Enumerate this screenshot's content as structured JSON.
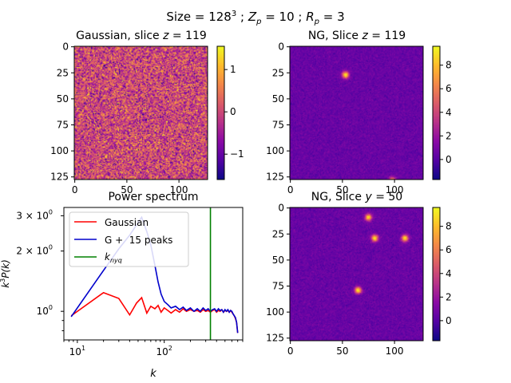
{
  "suptitle": "Size $=128^3$ ; $Z_p=10$ ; $R_p=3$",
  "suptitle_parts": {
    "a": "Size ",
    "b": "= 128",
    "c": "3",
    "d": " ; ",
    "e": "Z",
    "f": "p",
    "g": " = 10 ; ",
    "h": "R",
    "i": "p",
    "j": " = 3"
  },
  "colormap": "plasma",
  "chart_data": [
    {
      "type": "heatmap",
      "title_parts": {
        "a": "Gaussian, slice ",
        "b": "z",
        "c": " = 119"
      },
      "grid_size": 128,
      "xticks": [
        0,
        50,
        100
      ],
      "yticks": [
        0,
        25,
        50,
        75,
        100,
        125
      ],
      "colorbar": {
        "min": -1.6,
        "max": 1.55,
        "ticks": [
          -1,
          0,
          1
        ],
        "tick_labels": [
          "−1",
          "0",
          "1"
        ]
      },
      "field": "gaussian_random"
    },
    {
      "type": "heatmap",
      "title_parts": {
        "a": "NG, Slice ",
        "b": "z",
        "c": " = 119"
      },
      "grid_size": 128,
      "xticks": [
        0,
        50,
        100
      ],
      "yticks": [
        0,
        25,
        50,
        75,
        100,
        125
      ],
      "colorbar": {
        "min": -1.7,
        "max": 9.6,
        "ticks": [
          0,
          2,
          4,
          6,
          8
        ],
        "tick_labels": [
          "0",
          "2",
          "4",
          "6",
          "8"
        ]
      },
      "background": 0.5,
      "peaks": [
        {
          "x": 53,
          "y": 27,
          "value": 9.0
        },
        {
          "x": 98,
          "y": 128,
          "value": 6.0
        }
      ]
    },
    {
      "type": "line",
      "title": "Power spectrum",
      "xlabel": "k",
      "ylabel_parts": {
        "a": "k",
        "b": "3",
        "c": "P(k)"
      },
      "xscale": "log",
      "yscale": "log",
      "xlim": [
        7,
        800
      ],
      "ylim": [
        0.72,
        3.3
      ],
      "xticks": [
        {
          "v": 10,
          "base": "10",
          "exp": "1"
        },
        {
          "v": 100,
          "base": "10",
          "exp": "2"
        }
      ],
      "yticks": [
        {
          "v": 1,
          "base": "10",
          "exp": "0"
        },
        {
          "v": 2,
          "mant": "2 × 10",
          "exp": "0"
        },
        {
          "v": 3,
          "mant": "3 × 10",
          "exp": "0"
        }
      ],
      "legend_position": "upper-left",
      "legend": [
        "Gaussian",
        "G +  15 peaks",
        "k_nyq"
      ],
      "legend_knyq_parts": {
        "a": "k",
        "b": "nyq"
      },
      "series": [
        {
          "name": "Gaussian",
          "color": "#ff0000",
          "x": [
            8.5,
            20,
            30,
            40,
            48,
            55,
            63,
            70,
            78,
            85,
            92,
            100,
            110,
            120,
            135,
            150,
            165,
            180,
            200,
            220,
            240,
            260,
            280,
            300,
            320,
            340,
            360,
            380,
            400,
            420,
            440,
            460,
            480,
            500,
            520,
            540,
            560,
            580,
            600,
            620,
            640,
            660,
            680,
            700
          ],
          "y": [
            0.95,
            1.24,
            1.16,
            0.96,
            1.1,
            1.17,
            0.98,
            1.06,
            1.03,
            1.07,
            0.99,
            1.04,
            1.01,
            0.98,
            1.02,
            0.99,
            1.03,
            1.0,
            1.02,
            1.0,
            1.01,
            0.99,
            1.02,
            1.0,
            1.01,
            0.99,
            1.01,
            1.02,
            0.99,
            1.01,
            1.0,
            1.02,
            0.99,
            1.01,
            1.0,
            1.01,
            0.99,
            1.01,
            0.99,
            0.97,
            0.95,
            0.92,
            0.88,
            0.78
          ]
        },
        {
          "name": "G +  15 peaks",
          "color": "#0000cc",
          "x": [
            8.5,
            20,
            30,
            40,
            48,
            55,
            63,
            70,
            78,
            85,
            92,
            100,
            110,
            120,
            135,
            150,
            165,
            180,
            200,
            220,
            240,
            260,
            280,
            300,
            320,
            340,
            360,
            380,
            400,
            420,
            440,
            460,
            480,
            500,
            520,
            540,
            560,
            580,
            600,
            620,
            640,
            660,
            680,
            700
          ],
          "y": [
            0.94,
            1.6,
            2.05,
            2.4,
            2.7,
            2.95,
            2.5,
            2.15,
            1.7,
            1.4,
            1.22,
            1.12,
            1.08,
            1.04,
            1.06,
            1.02,
            1.05,
            1.01,
            1.04,
            1.0,
            1.03,
            1.0,
            1.04,
            1.01,
            1.03,
            1.0,
            1.02,
            1.03,
            1.0,
            1.03,
            1.01,
            1.02,
            0.99,
            1.02,
            1.0,
            1.02,
            0.99,
            1.01,
            1.0,
            0.97,
            0.95,
            0.93,
            0.88,
            0.78
          ]
        }
      ],
      "vline": {
        "name": "k_nyq",
        "x": 340,
        "color": "#008000"
      }
    },
    {
      "type": "heatmap",
      "title_parts": {
        "a": "NG, Slice ",
        "b": "y",
        "c": " = 50"
      },
      "grid_size": 128,
      "xticks": [
        0,
        50,
        100
      ],
      "yticks": [
        0,
        25,
        50,
        75,
        100,
        125
      ],
      "colorbar": {
        "min": -1.7,
        "max": 9.6,
        "ticks": [
          0,
          2,
          4,
          6,
          8
        ],
        "tick_labels": [
          "0",
          "2",
          "4",
          "6",
          "8"
        ]
      },
      "background": 0.5,
      "peaks": [
        {
          "x": 75,
          "y": 9,
          "value": 8.5
        },
        {
          "x": 81,
          "y": 29,
          "value": 9.0
        },
        {
          "x": 110,
          "y": 29,
          "value": 9.0
        },
        {
          "x": 65,
          "y": 79,
          "value": 9.0
        }
      ]
    }
  ]
}
